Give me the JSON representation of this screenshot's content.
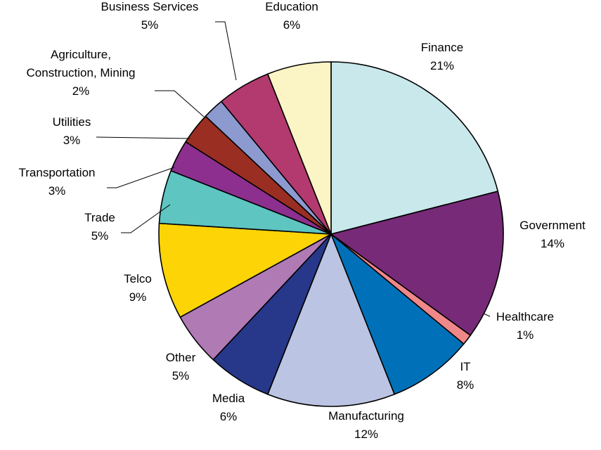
{
  "chart_data": {
    "type": "pie",
    "title": "",
    "start_angle_deg": 0,
    "direction": "clockwise",
    "slices": [
      {
        "category": "Finance",
        "value": 21,
        "label": "21%",
        "color": "#c8e8ec"
      },
      {
        "category": "Government",
        "value": 14,
        "label": "14%",
        "color": "#772a77"
      },
      {
        "category": "Healthcare",
        "value": 1,
        "label": "1%",
        "color": "#f0888a"
      },
      {
        "category": "IT",
        "value": 8,
        "label": "8%",
        "color": "#0071b9"
      },
      {
        "category": "Manufacturing",
        "value": 12,
        "label": "12%",
        "color": "#bcc4e3"
      },
      {
        "category": "Media",
        "value": 6,
        "label": "6%",
        "color": "#27388a"
      },
      {
        "category": "Other",
        "value": 5,
        "label": "5%",
        "color": "#b07ab5"
      },
      {
        "category": "Telco",
        "value": 9,
        "label": "9%",
        "color": "#fdd406"
      },
      {
        "category": "Trade",
        "value": 5,
        "label": "5%",
        "color": "#5ec5c1"
      },
      {
        "category": "Transportation",
        "value": 3,
        "label": "3%",
        "color": "#8d2f8f"
      },
      {
        "category": "Utilities",
        "value": 3,
        "label": "3%",
        "color": "#9a2e22"
      },
      {
        "category": "Agriculture, Construction, Mining",
        "label_lines": [
          "Agriculture,",
          "Construction, Mining"
        ],
        "value": 2,
        "label": "2%",
        "color": "#8d9ad0"
      },
      {
        "category": "Business Services",
        "value": 5,
        "label": "5%",
        "color": "#b23a6e"
      },
      {
        "category": "Education",
        "value": 6,
        "label": "6%",
        "color": "#fbf5c6"
      }
    ]
  }
}
